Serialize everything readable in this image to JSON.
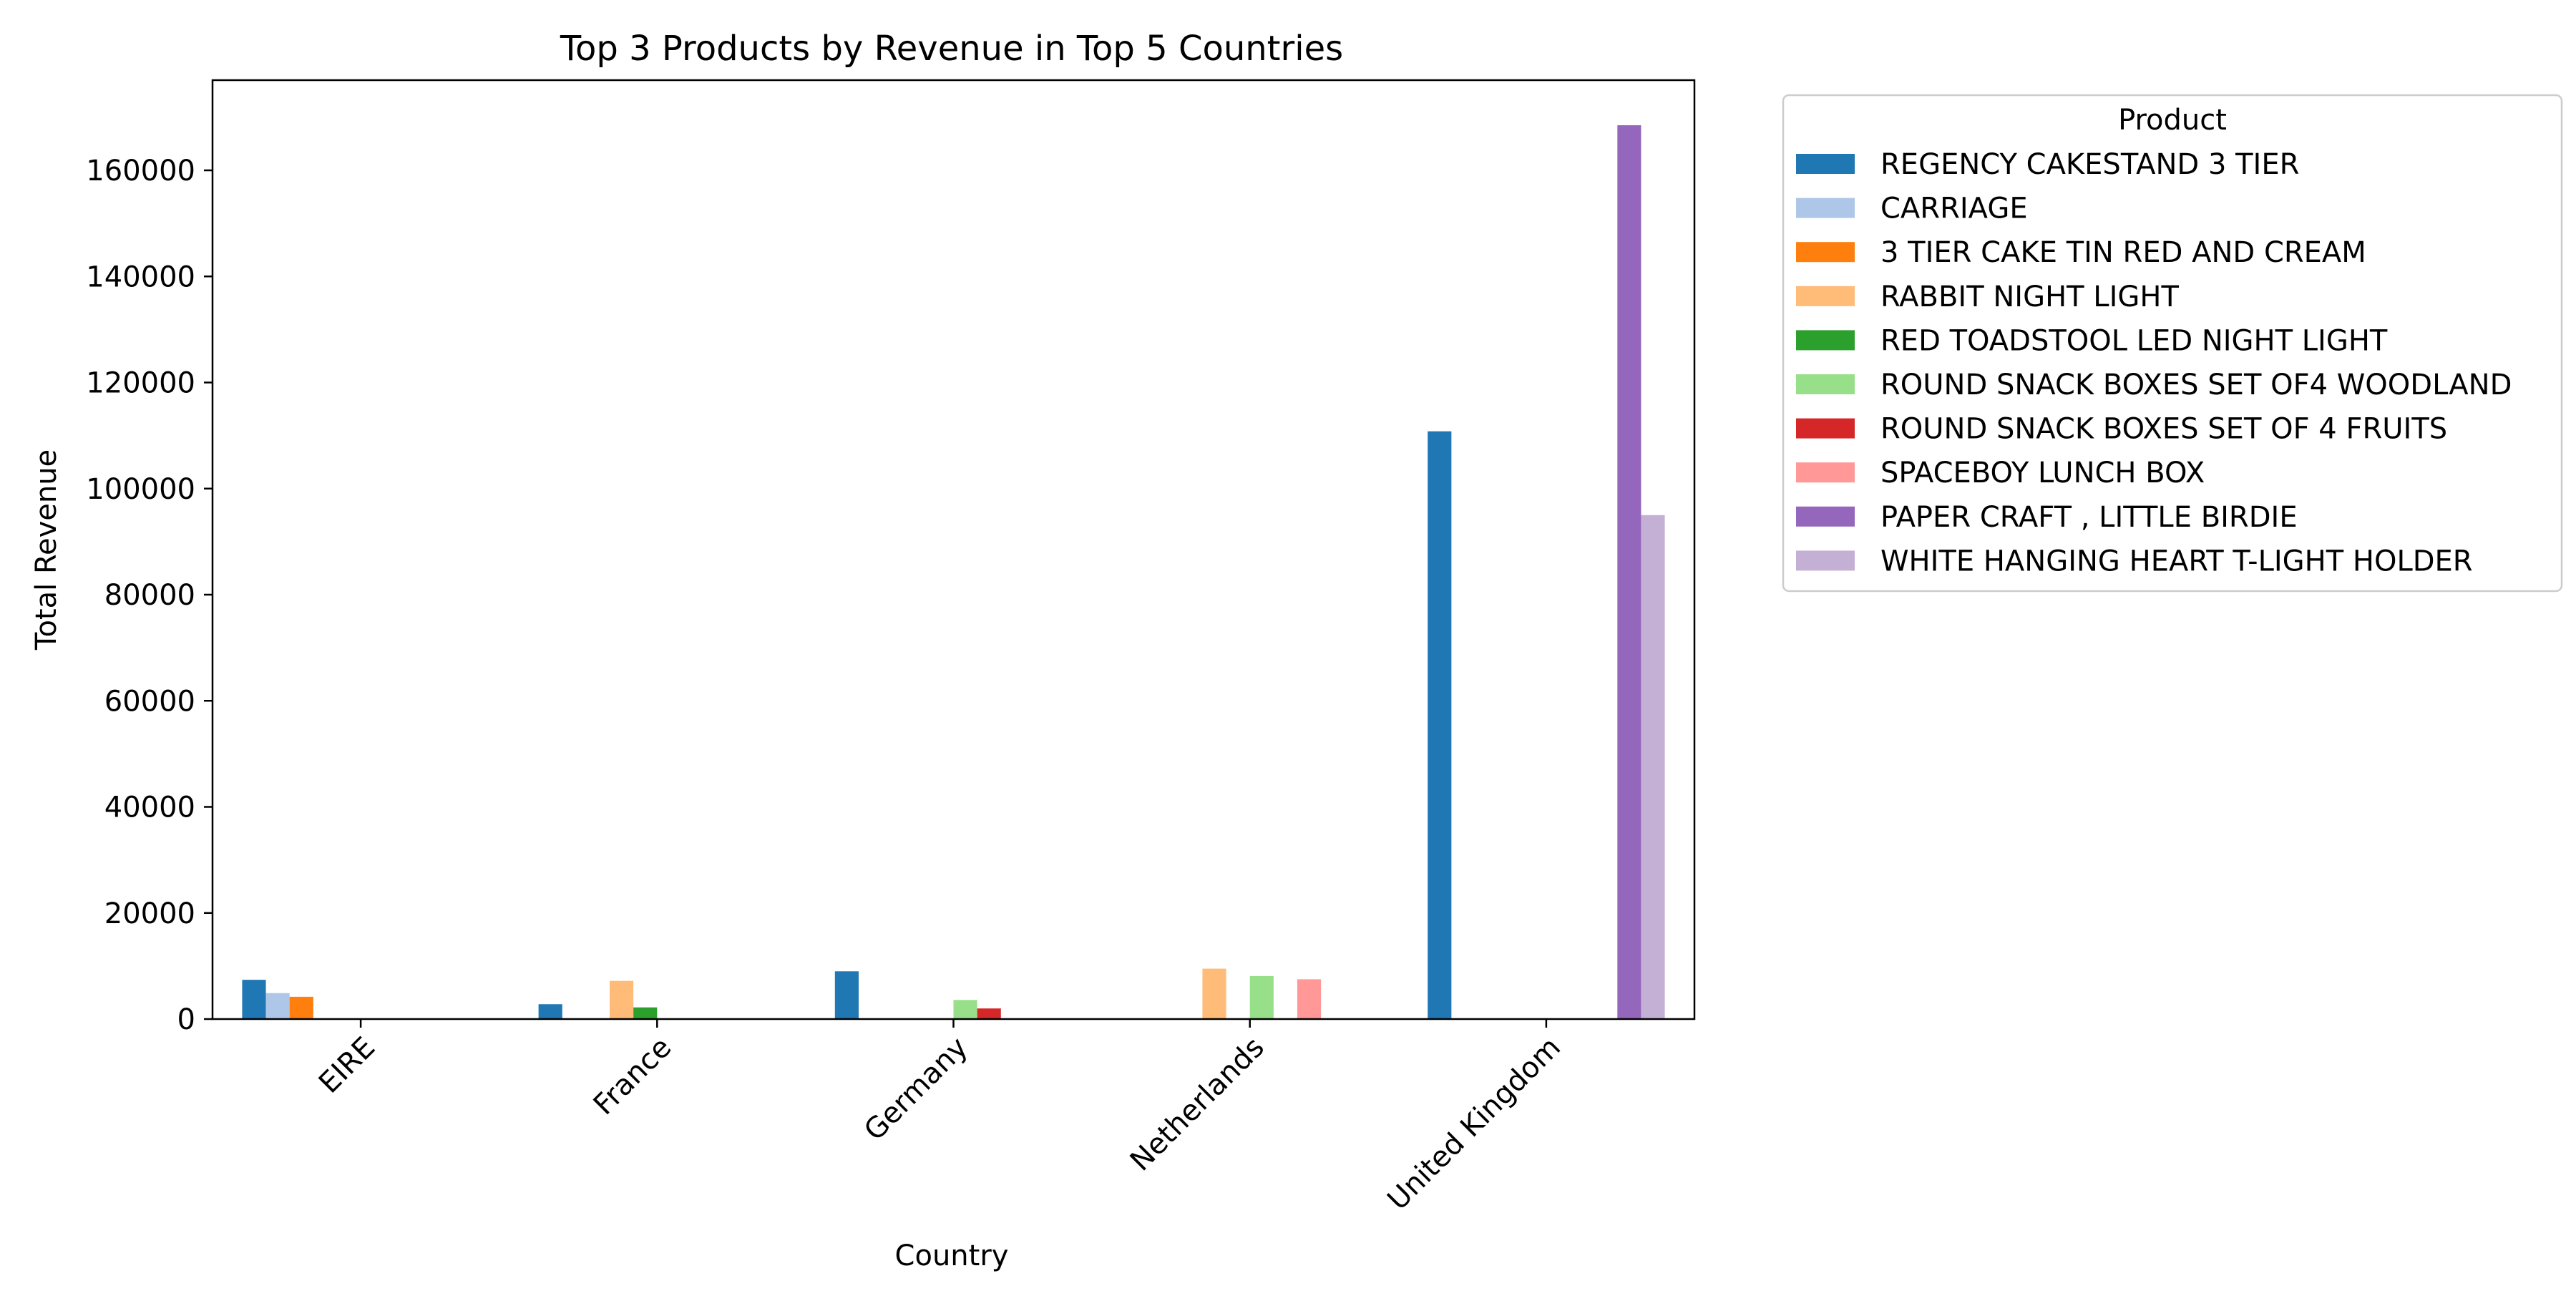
{
  "chart_data": {
    "type": "bar",
    "title": "Top 3 Products by Revenue in Top 5 Countries",
    "xlabel": "Country",
    "ylabel": "Total Revenue",
    "categories": [
      "EIRE",
      "France",
      "Germany",
      "Netherlands",
      "United Kingdom"
    ],
    "yticks": [
      0,
      20000,
      40000,
      60000,
      80000,
      100000,
      120000,
      140000,
      160000
    ],
    "ylim": [
      0,
      177000
    ],
    "grid": false,
    "legend_title": "Product",
    "legend_position": "outside-right",
    "series": [
      {
        "name": "REGENCY CAKESTAND 3 TIER",
        "color": "#1f77b4",
        "values": [
          7400,
          2800,
          9000,
          null,
          110800
        ]
      },
      {
        "name": "CARRIAGE",
        "color": "#aec7e8",
        "values": [
          4900,
          null,
          null,
          null,
          null
        ]
      },
      {
        "name": "3 TIER CAKE TIN RED AND CREAM",
        "color": "#ff7f0e",
        "values": [
          4200,
          null,
          null,
          null,
          null
        ]
      },
      {
        "name": "RABBIT NIGHT LIGHT",
        "color": "#ffbb78",
        "values": [
          null,
          7200,
          null,
          9500,
          null
        ]
      },
      {
        "name": "RED TOADSTOOL LED NIGHT LIGHT",
        "color": "#2ca02c",
        "values": [
          null,
          2200,
          null,
          null,
          null
        ]
      },
      {
        "name": "ROUND SNACK BOXES SET OF4 WOODLAND",
        "color": "#98df8a",
        "values": [
          null,
          null,
          3600,
          8100,
          null
        ]
      },
      {
        "name": "ROUND SNACK BOXES SET OF 4 FRUITS",
        "color": "#d62728",
        "values": [
          null,
          null,
          2000,
          null,
          null
        ]
      },
      {
        "name": "SPACEBOY LUNCH BOX",
        "color": "#ff9896",
        "values": [
          null,
          null,
          null,
          7500,
          null
        ]
      },
      {
        "name": "PAPER CRAFT , LITTLE BIRDIE",
        "color": "#9467bd",
        "values": [
          null,
          null,
          null,
          null,
          168500
        ]
      },
      {
        "name": "WHITE HANGING HEART T-LIGHT HOLDER",
        "color": "#c5b0d5",
        "values": [
          null,
          null,
          null,
          null,
          95000
        ]
      }
    ]
  }
}
